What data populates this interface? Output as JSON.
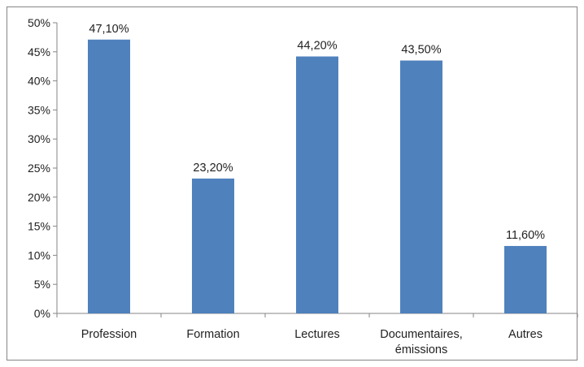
{
  "chart_data": {
    "type": "bar",
    "categories": [
      [
        "Profession"
      ],
      [
        "Formation"
      ],
      [
        "Lectures"
      ],
      [
        "Documentaires,",
        "émissions"
      ],
      [
        "Autres"
      ]
    ],
    "values": [
      47.1,
      23.2,
      44.2,
      43.5,
      11.6
    ],
    "data_labels": [
      "47,10%",
      "23,20%",
      "44,20%",
      "43,50%",
      "11,60%"
    ],
    "ylim": [
      0,
      50
    ],
    "y_ticks": [
      0,
      5,
      10,
      15,
      20,
      25,
      30,
      35,
      40,
      45,
      50
    ],
    "y_tick_labels": [
      "0%",
      "5%",
      "10%",
      "15%",
      "20%",
      "25%",
      "30%",
      "35%",
      "40%",
      "45%",
      "50%"
    ],
    "title": "",
    "xlabel": "",
    "ylabel": "",
    "grid": false,
    "legend": "none",
    "colors": {
      "bar": "#4F81BD",
      "axis": "#868686"
    }
  }
}
